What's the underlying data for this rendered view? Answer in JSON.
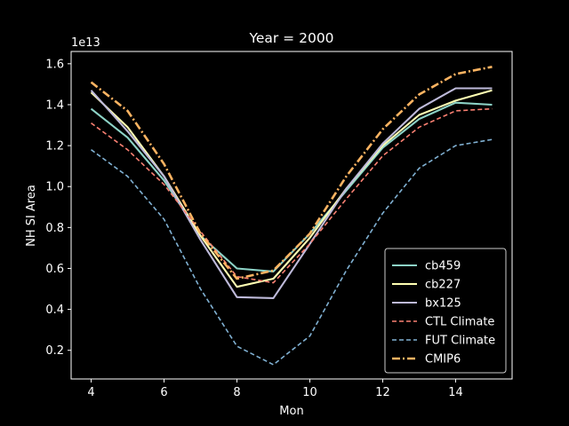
{
  "chart_data": {
    "type": "line",
    "title": "Year = 2000",
    "xlabel": "Mon",
    "ylabel": "NH SI Area",
    "y_offset_label": "1e13",
    "xlim": [
      3.45,
      15.55
    ],
    "ylim": [
      0.06,
      1.66
    ],
    "xticks": [
      4,
      6,
      8,
      10,
      12,
      14
    ],
    "yticks": [
      0.2,
      0.4,
      0.6,
      0.8,
      1.0,
      1.2,
      1.4,
      1.6
    ],
    "ytick_labels": [
      "0.2",
      "0.4",
      "0.6",
      "0.8",
      "1.0",
      "1.2",
      "1.4",
      "1.6"
    ],
    "legend_position": "lower right",
    "grid": false,
    "x": [
      4,
      5,
      6,
      7,
      8,
      9,
      10,
      11,
      12,
      13,
      14,
      15
    ],
    "series": [
      {
        "name": "cb459",
        "color": "#8dd3c7",
        "style": "solid",
        "values": [
          1.38,
          1.24,
          1.03,
          0.76,
          0.6,
          0.585,
          0.77,
          0.98,
          1.19,
          1.33,
          1.41,
          1.4
        ]
      },
      {
        "name": "cb227",
        "color": "#ffffb3",
        "style": "solid",
        "values": [
          1.46,
          1.29,
          1.05,
          0.76,
          0.51,
          0.55,
          0.75,
          0.99,
          1.2,
          1.35,
          1.42,
          1.47
        ]
      },
      {
        "name": "bx125",
        "color": "#bebada",
        "style": "solid",
        "values": [
          1.47,
          1.27,
          1.05,
          0.74,
          0.46,
          0.455,
          0.72,
          0.99,
          1.21,
          1.38,
          1.48,
          1.48
        ]
      },
      {
        "name": "CTL Climate",
        "color": "#fb8072",
        "style": "dashed",
        "values": [
          1.31,
          1.18,
          1.01,
          0.78,
          0.56,
          0.53,
          0.72,
          0.94,
          1.15,
          1.29,
          1.37,
          1.38
        ]
      },
      {
        "name": "FUT Climate",
        "color": "#80b1d3",
        "style": "dashed",
        "values": [
          1.18,
          1.05,
          0.84,
          0.5,
          0.22,
          0.13,
          0.27,
          0.59,
          0.87,
          1.09,
          1.2,
          1.23
        ]
      },
      {
        "name": "CMIP6",
        "color": "#fdb462",
        "style": "dashdot",
        "values": [
          1.51,
          1.37,
          1.11,
          0.77,
          0.55,
          0.59,
          0.77,
          1.05,
          1.28,
          1.45,
          1.55,
          1.585
        ]
      }
    ]
  }
}
